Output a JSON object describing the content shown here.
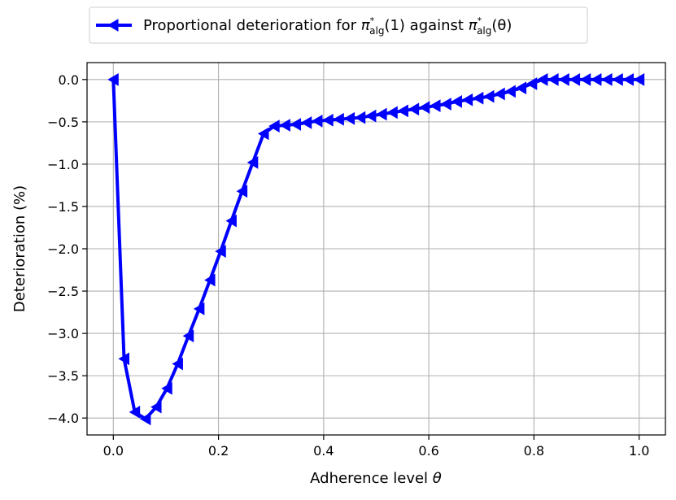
{
  "chart_data": {
    "type": "line",
    "xlabel": "Adherence level",
    "xlabel_symbol": "θ",
    "ylabel": "Deterioration (%)",
    "xlim": [
      -0.05,
      1.05
    ],
    "ylim": [
      -4.2,
      0.2
    ],
    "xticks": [
      0.0,
      0.2,
      0.4,
      0.6,
      0.8,
      1.0
    ],
    "xtick_labels": [
      "0.0",
      "0.2",
      "0.4",
      "0.6",
      "0.8",
      "1.0"
    ],
    "yticks": [
      0.0,
      -0.5,
      -1.0,
      -1.5,
      -2.0,
      -2.5,
      -3.0,
      -3.5,
      -4.0
    ],
    "ytick_labels": [
      "0.0",
      "−0.5",
      "−1.0",
      "−1.5",
      "−2.0",
      "−2.5",
      "−3.0",
      "−3.5",
      "−4.0"
    ],
    "grid": true,
    "legend_position": "top-center",
    "series": [
      {
        "name_prefix": "Proportional deterioration for ",
        "name_pi": "π",
        "name_sup": "*",
        "name_sub": "alg",
        "name_arg1": "(1)",
        "name_mid": " against ",
        "name_arg2": "(θ)",
        "color": "#0000ff",
        "marker": "triangle-left",
        "x": [
          0.0,
          0.0204,
          0.0408,
          0.0612,
          0.0816,
          0.102,
          0.1224,
          0.1429,
          0.1633,
          0.1837,
          0.2041,
          0.2245,
          0.2449,
          0.2653,
          0.2857,
          0.3061,
          0.3265,
          0.3469,
          0.3673,
          0.3878,
          0.4082,
          0.4286,
          0.449,
          0.4694,
          0.4898,
          0.5102,
          0.5306,
          0.551,
          0.5714,
          0.5918,
          0.6122,
          0.6327,
          0.6531,
          0.6735,
          0.6939,
          0.7143,
          0.7347,
          0.7551,
          0.7755,
          0.7959,
          0.8163,
          0.8367,
          0.8571,
          0.8776,
          0.898,
          0.9184,
          0.9388,
          0.9592,
          0.9796,
          1.0
        ],
        "y": [
          0.0,
          -3.3,
          -3.93,
          -4.01,
          -3.87,
          -3.65,
          -3.36,
          -3.03,
          -2.71,
          -2.37,
          -2.03,
          -1.67,
          -1.32,
          -0.98,
          -0.64,
          -0.55,
          -0.54,
          -0.53,
          -0.51,
          -0.49,
          -0.48,
          -0.47,
          -0.46,
          -0.45,
          -0.43,
          -0.41,
          -0.39,
          -0.37,
          -0.35,
          -0.33,
          -0.31,
          -0.29,
          -0.26,
          -0.24,
          -0.22,
          -0.2,
          -0.17,
          -0.14,
          -0.1,
          -0.05,
          0.0,
          0.0,
          0.0,
          0.0,
          0.0,
          0.0,
          0.0,
          0.0,
          0.0,
          0.0
        ]
      }
    ]
  }
}
